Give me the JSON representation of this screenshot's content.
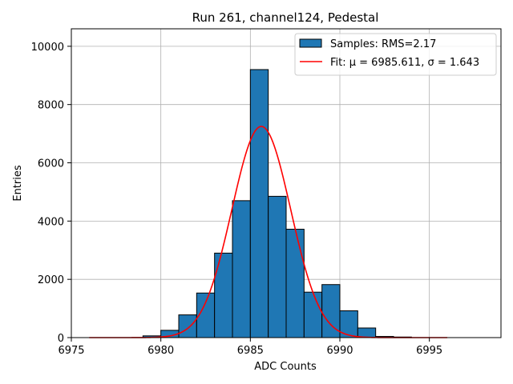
{
  "chart_data": {
    "type": "bar",
    "title": "Run 261, channel124, Pedestal",
    "xlabel": "ADC Counts",
    "ylabel": "Entries",
    "xlim": [
      6975,
      6999
    ],
    "ylim": [
      0,
      10600
    ],
    "xticks": [
      6975,
      6980,
      6985,
      6990,
      6995
    ],
    "yticks": [
      0,
      2000,
      4000,
      6000,
      8000,
      10000
    ],
    "grid": true,
    "legend_position": "top-right",
    "colors": {
      "bars": "#1f77b4",
      "bar_edge": "#000000",
      "fit": "#ff0000",
      "grid": "#b0b0b0"
    },
    "histogram": {
      "name": "Samples: RMS=2.17",
      "bin_width": 1,
      "bins": [
        {
          "x0": 6979,
          "value": 60
        },
        {
          "x0": 6980,
          "value": 250
        },
        {
          "x0": 6981,
          "value": 780
        },
        {
          "x0": 6982,
          "value": 1530
        },
        {
          "x0": 6983,
          "value": 2900
        },
        {
          "x0": 6984,
          "value": 4700
        },
        {
          "x0": 6985,
          "value": 9200
        },
        {
          "x0": 6986,
          "value": 4850
        },
        {
          "x0": 6987,
          "value": 3720
        },
        {
          "x0": 6988,
          "value": 1560
        },
        {
          "x0": 6989,
          "value": 1820
        },
        {
          "x0": 6990,
          "value": 920
        },
        {
          "x0": 6991,
          "value": 330
        },
        {
          "x0": 6992,
          "value": 40
        },
        {
          "x0": 6993,
          "value": 20
        }
      ]
    },
    "fit": {
      "name": "Fit: μ = 6985.611, σ = 1.643",
      "mu": 6985.611,
      "sigma": 1.643,
      "amplitude": 7250,
      "x_range": [
        6976,
        6996
      ]
    }
  }
}
